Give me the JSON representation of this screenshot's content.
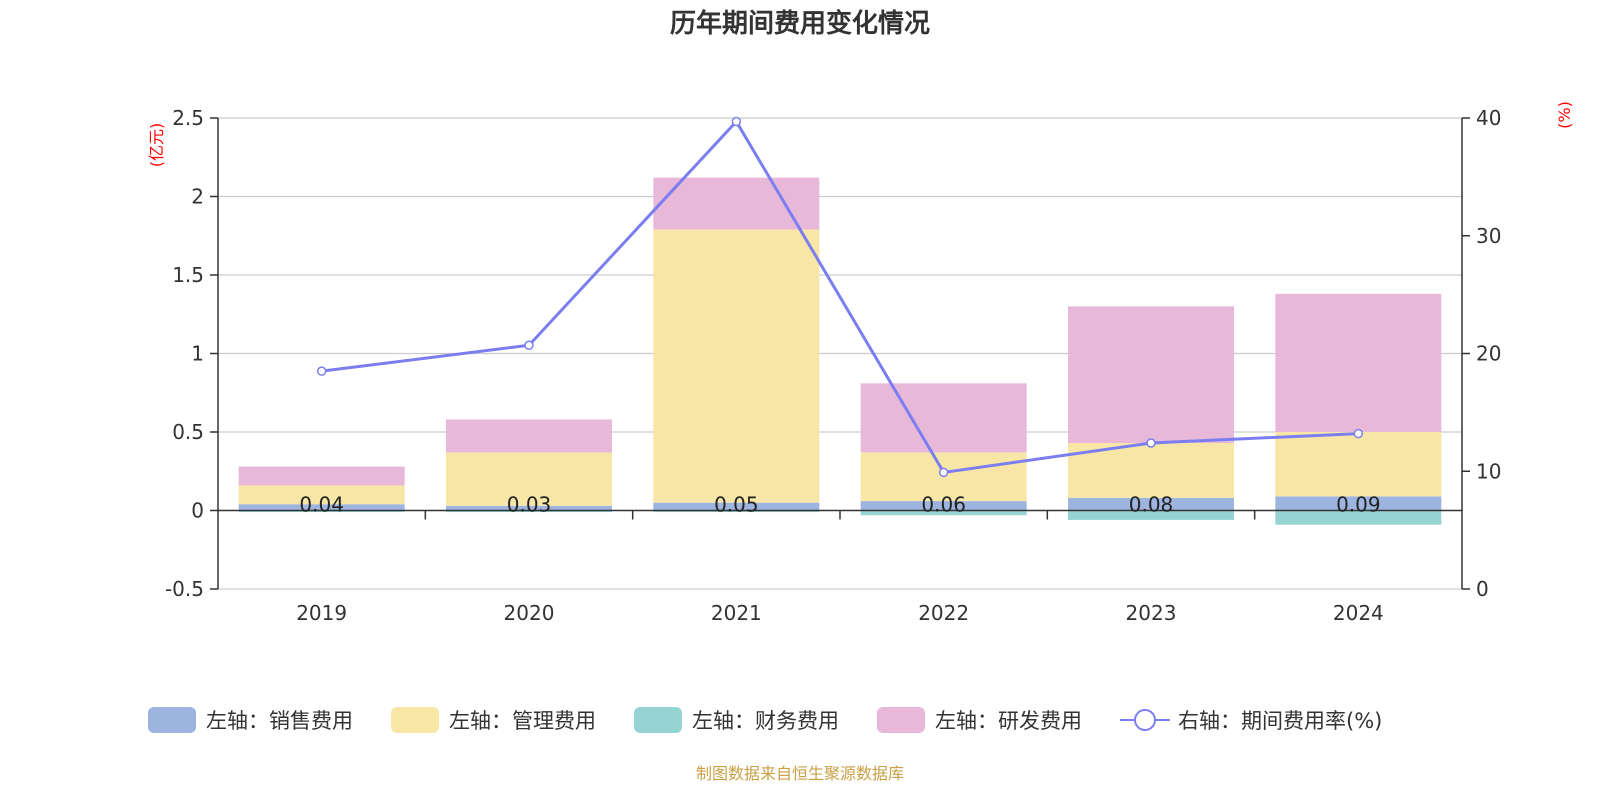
{
  "chart_data": {
    "type": "bar",
    "title": "历年期间费用变化情况",
    "categories": [
      "2019",
      "2020",
      "2021",
      "2022",
      "2023",
      "2024"
    ],
    "left_axis": {
      "unit_label": "(亿元)",
      "ylim": [
        -0.5,
        2.5
      ],
      "ticks": [
        -0.5,
        0,
        0.5,
        1,
        1.5,
        2,
        2.5
      ]
    },
    "right_axis": {
      "unit_label": "(%)",
      "ylim": [
        0,
        40
      ],
      "ticks": [
        0,
        10,
        20,
        30,
        40
      ]
    },
    "series": [
      {
        "name": "左轴：销售费用",
        "axis": "left",
        "stack": true,
        "color": "#9db4df",
        "values": [
          0.04,
          0.03,
          0.05,
          0.06,
          0.08,
          0.09
        ]
      },
      {
        "name": "左轴：管理费用",
        "axis": "left",
        "stack": true,
        "color": "#f8e6a6",
        "values": [
          0.12,
          0.34,
          1.74,
          0.31,
          0.35,
          0.41
        ]
      },
      {
        "name": "左轴：财务费用",
        "axis": "left",
        "stack": true,
        "color": "#96d4d4",
        "values": [
          -0.01,
          -0.01,
          -0.01,
          -0.03,
          -0.06,
          -0.09
        ]
      },
      {
        "name": "左轴：研发费用",
        "axis": "left",
        "stack": true,
        "color": "#e8b8d9",
        "values": [
          0.12,
          0.21,
          0.33,
          0.44,
          0.87,
          0.88
        ]
      },
      {
        "name": "右轴：期间费用率(%)",
        "axis": "right",
        "type": "line",
        "color": "#7b7ef0",
        "values": [
          18.5,
          20.7,
          39.7,
          9.9,
          12.4,
          13.2
        ]
      }
    ],
    "data_labels": [
      "0.04",
      "0.03",
      "0.05",
      "0.06",
      "0.08",
      "0.09"
    ],
    "grid": true,
    "legend_position": "bottom"
  },
  "source_note": "制图数据来自恒生聚源数据库"
}
